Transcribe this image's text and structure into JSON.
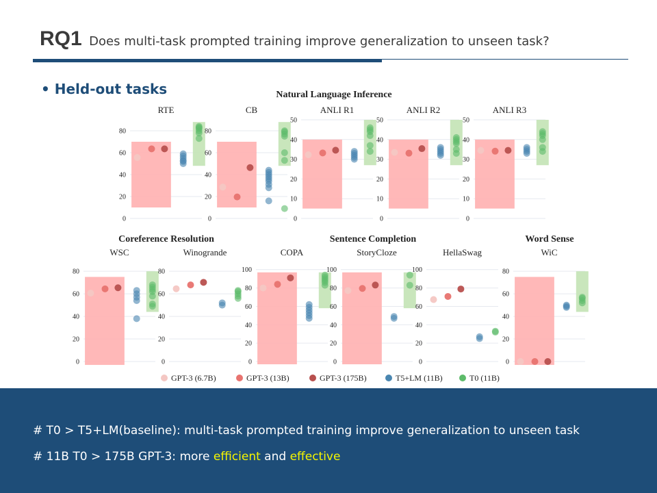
{
  "slide": {
    "rq_label": "RQ1",
    "question": "Does multi-task prompted training improve generalization to unseen task?",
    "bullet": "Held-out tasks"
  },
  "colors": {
    "brand": "#1e4d78",
    "footer_bg": "#1e4d78",
    "highlight": "#f5f500",
    "gpt_band": "#ffb0b0",
    "t0_band": "#c3e3b5",
    "gpt3_6_7b": "#f4c7c3",
    "gpt3_13b": "#e8736f",
    "gpt3_175b": "#b8504e",
    "t5_lm": "#4a86b0",
    "t0": "#5dbb6a"
  },
  "footer": {
    "line1": "# T0 > T5+LM(baseline):  multi-task prompted training improve generalization to unseen task",
    "line2_prefix": "# 11B T0 > 175B GPT-3: more ",
    "line2_word1": "efficient",
    "line2_mid": " and ",
    "line2_word2": "effective"
  },
  "chart_data": {
    "type": "scatter",
    "groups": {
      "nli": "Natural Language Inference",
      "coref": "Coreference Resolution",
      "sentence": "Sentence Completion",
      "wsd": "Word Sense"
    },
    "legend": [
      {
        "key": "gpt3_6_7b",
        "label": "GPT-3 (6.7B)"
      },
      {
        "key": "gpt3_13b",
        "label": "GPT-3 (13B)"
      },
      {
        "key": "gpt3_175b",
        "label": "GPT-3 (175B)"
      },
      {
        "key": "t5_lm",
        "label": "T5+LM (11B)"
      },
      {
        "key": "t0",
        "label": "T0 (11B)"
      }
    ],
    "panels": [
      {
        "id": "rte",
        "title": "RTE",
        "ylim": [
          0,
          90
        ],
        "ticks": [
          0,
          20,
          40,
          60,
          80
        ],
        "gpt_band": [
          10,
          70
        ],
        "t0_band": [
          48,
          88
        ],
        "gpt3": [
          55.6,
          63.5,
          63.5
        ],
        "t5": [
          50,
          52,
          53,
          55,
          57,
          59
        ],
        "t0": [
          73,
          78,
          80,
          82,
          83,
          84
        ]
      },
      {
        "id": "cb",
        "title": "CB",
        "ylim": [
          0,
          90
        ],
        "ticks": [
          0,
          20,
          40,
          60,
          80
        ],
        "gpt_band": [
          10,
          70
        ],
        "t0_band": [
          48,
          88
        ],
        "gpt3": [
          28.6,
          19.6,
          46.4
        ],
        "t5": [
          16,
          28,
          31,
          34,
          36,
          38,
          40,
          42,
          44
        ],
        "t0": [
          9,
          53,
          60,
          75,
          77,
          79,
          80
        ]
      },
      {
        "id": "anli1",
        "title": "ANLI R1",
        "ylim": [
          0,
          50
        ],
        "ticks": [
          0,
          10,
          20,
          30,
          40,
          50
        ],
        "gpt_band": [
          5,
          40
        ],
        "t0_band": [
          27,
          50
        ],
        "gpt3": [
          32.3,
          33.2,
          34.6
        ],
        "t5": [
          30,
          31,
          32,
          33,
          34
        ],
        "t0": [
          34,
          37,
          42,
          44,
          45,
          46
        ]
      },
      {
        "id": "anli2",
        "title": "ANLI R2",
        "ylim": [
          0,
          50
        ],
        "ticks": [
          0,
          10,
          20,
          30,
          40,
          50
        ],
        "gpt_band": [
          5,
          40
        ],
        "t0_band": [
          27,
          50
        ],
        "gpt3": [
          33.5,
          33.1,
          35.4
        ],
        "t5": [
          32,
          33,
          34,
          35,
          36
        ],
        "t0": [
          33,
          35,
          38,
          39,
          40,
          41
        ]
      },
      {
        "id": "anli3",
        "title": "ANLI R3",
        "ylim": [
          0,
          50
        ],
        "ticks": [
          0,
          10,
          20,
          30,
          40,
          50
        ],
        "gpt_band": [
          5,
          40
        ],
        "t0_band": [
          27,
          50
        ],
        "gpt3": [
          34.5,
          34.1,
          34.5
        ],
        "t5": [
          33,
          34,
          35,
          36
        ],
        "t0": [
          34,
          36,
          40,
          42,
          43,
          44
        ]
      },
      {
        "id": "wsc",
        "title": "WSC",
        "ylim": [
          0,
          88
        ],
        "ticks": [
          0,
          20,
          40,
          60,
          80
        ],
        "gpt_band": [
          -3,
          75
        ],
        "t0_band": [
          44,
          80
        ],
        "gpt3": [
          60.6,
          64.4,
          65.4
        ],
        "t5": [
          38,
          54,
          57,
          60,
          63
        ],
        "t0": [
          49,
          51,
          58,
          62,
          64,
          66,
          68
        ]
      },
      {
        "id": "wino",
        "title": "Winogrande",
        "ylim": [
          0,
          88
        ],
        "ticks": [
          0,
          20,
          40,
          60,
          80
        ],
        "gpt_band": null,
        "t0_band": null,
        "gpt3": [
          64.5,
          67.9,
          70.2
        ],
        "t5": [
          50,
          52
        ],
        "t0": [
          56,
          58,
          60,
          62,
          63
        ]
      },
      {
        "id": "copa",
        "title": "COPA",
        "ylim": [
          0,
          108
        ],
        "ticks": [
          0,
          20,
          40,
          60,
          80,
          100
        ],
        "gpt_band": [
          -3,
          97
        ],
        "t0_band": [
          58,
          97
        ],
        "gpt3": [
          80,
          84,
          91
        ],
        "t5": [
          47,
          50,
          53,
          56,
          59,
          62
        ],
        "t0": [
          83,
          86,
          88,
          90,
          92,
          94
        ]
      },
      {
        "id": "story",
        "title": "StoryCloze",
        "ylim": [
          0,
          108
        ],
        "ticks": [
          0,
          20,
          40,
          60,
          80,
          100
        ],
        "gpt_band": [
          -3,
          97
        ],
        "t0_band": [
          58,
          97
        ],
        "gpt3": [
          77.2,
          79.5,
          83.2
        ],
        "t5": [
          47,
          49
        ],
        "t0": [
          83,
          94
        ]
      },
      {
        "id": "hella",
        "title": "HellaSwag",
        "ylim": [
          0,
          108
        ],
        "ticks": [
          0,
          20,
          40,
          60,
          80,
          100
        ],
        "gpt_band": null,
        "t0_band": null,
        "gpt3": [
          67.4,
          70.8,
          78.9
        ],
        "t5": [
          25,
          27
        ],
        "t0": [
          32,
          33
        ]
      },
      {
        "id": "wic",
        "title": "WiC",
        "ylim": [
          0,
          88
        ],
        "ticks": [
          0,
          20,
          40,
          60,
          80
        ],
        "gpt_band": [
          -3,
          75
        ],
        "t0_band": [
          44,
          80
        ],
        "gpt3": [
          0,
          0,
          0
        ],
        "t5": [
          48,
          49,
          50
        ],
        "t0": [
          52,
          54,
          56,
          57
        ]
      }
    ]
  }
}
